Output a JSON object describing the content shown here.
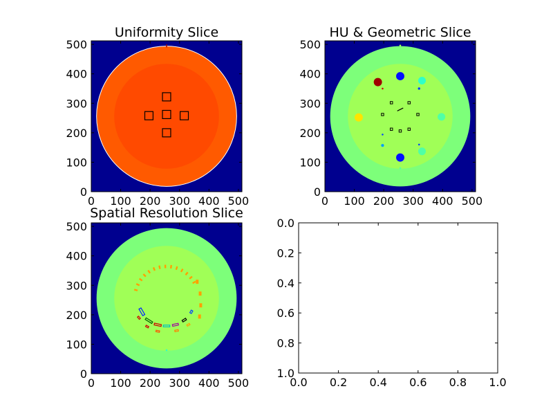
{
  "chart_data": [
    {
      "type": "heatmap",
      "title": "Uniformity Slice",
      "xlabel": "",
      "ylabel": "",
      "xlim": [
        0,
        512
      ],
      "ylim": [
        512,
        0
      ],
      "xticks": [
        0,
        100,
        200,
        300,
        400,
        500
      ],
      "yticks": [
        0,
        100,
        200,
        300,
        400,
        500
      ],
      "background_color": "#00008f",
      "phantom": {
        "center": [
          256,
          256
        ],
        "radius": 238,
        "outer_color": "#ff5a00",
        "inner_radius": 178,
        "inner_color": "#ff4a00",
        "rim_color": "#ffffff"
      },
      "rois": [
        {
          "cx": 256,
          "cy": 190,
          "size": 28
        },
        {
          "cx": 196,
          "cy": 254,
          "size": 28
        },
        {
          "cx": 256,
          "cy": 250,
          "size": 28
        },
        {
          "cx": 316,
          "cy": 254,
          "size": 28
        },
        {
          "cx": 256,
          "cy": 312,
          "size": 28
        }
      ]
    },
    {
      "type": "heatmap",
      "title": "HU & Geometric Slice",
      "xlabel": "",
      "ylabel": "",
      "xlim": [
        0,
        512
      ],
      "ylim": [
        512,
        0
      ],
      "xticks": [
        0,
        100,
        200,
        300,
        400,
        500
      ],
      "yticks": [
        0,
        100,
        200,
        300,
        400,
        500
      ],
      "background_color": "#00008f",
      "phantom": {
        "center": [
          256,
          256
        ],
        "radius": 238,
        "outer_color": "#7dff7a",
        "inner_radius": 178,
        "inner_color": "#a0ff57"
      },
      "inserts": [
        {
          "cx": 256,
          "cy": 120,
          "r": 14,
          "color": "#0010ff"
        },
        {
          "cx": 180,
          "cy": 140,
          "r": 14,
          "color": "#9f0000"
        },
        {
          "cx": 330,
          "cy": 135,
          "r": 13,
          "color": "#30ffc8"
        },
        {
          "cx": 115,
          "cy": 260,
          "r": 14,
          "color": "#ffe400"
        },
        {
          "cx": 396,
          "cy": 258,
          "r": 13,
          "color": "#50ffa6"
        },
        {
          "cx": 330,
          "cy": 375,
          "r": 13,
          "color": "#50ffa6"
        },
        {
          "cx": 256,
          "cy": 396,
          "r": 14,
          "color": "#0010ff"
        },
        {
          "cx": 196,
          "cy": 355,
          "r": 5,
          "color": "#00a0ff"
        },
        {
          "cx": 320,
          "cy": 162,
          "r": 4,
          "color": "#0040ff"
        },
        {
          "cx": 196,
          "cy": 162,
          "r": 3,
          "color": "#d00000"
        },
        {
          "cx": 320,
          "cy": 352,
          "r": 3,
          "color": "#0040ff"
        },
        {
          "cx": 196,
          "cy": 318,
          "r": 3,
          "color": "#0040ff"
        },
        {
          "cx": 256,
          "cy": 16,
          "r": 3,
          "color": "#a0ff57"
        },
        {
          "cx": 256,
          "cy": 432,
          "r": 3,
          "color": "#50ffa6"
        }
      ],
      "squares": [
        {
          "cx": 226,
          "cy": 210,
          "size": 8
        },
        {
          "cx": 286,
          "cy": 210,
          "size": 8
        },
        {
          "cx": 196,
          "cy": 250,
          "size": 8
        },
        {
          "cx": 316,
          "cy": 250,
          "size": 8
        },
        {
          "cx": 226,
          "cy": 300,
          "size": 8
        },
        {
          "cx": 256,
          "cy": 306,
          "size": 8
        },
        {
          "cx": 286,
          "cy": 300,
          "size": 8
        }
      ]
    },
    {
      "type": "heatmap",
      "title": "Spatial Resolution Slice",
      "xlabel": "",
      "ylabel": "",
      "xlim": [
        0,
        512
      ],
      "ylim": [
        512,
        0
      ],
      "xticks": [
        0,
        100,
        200,
        300,
        400,
        500
      ],
      "yticks": [
        0,
        100,
        200,
        300,
        400,
        500
      ],
      "background_color": "#00008f",
      "phantom": {
        "center": [
          256,
          256
        ],
        "radius": 238,
        "outer_color": "#7dff7a",
        "inner_radius": 178,
        "inner_color": "#a0ff57"
      },
      "ring": {
        "center": [
          256,
          256
        ],
        "radius": 108,
        "start_deg": 195,
        "end_deg": 330,
        "count": 14,
        "color": "#ffa000"
      },
      "bar_groups": [
        {
          "cx": 172,
          "cy": 302,
          "w": 8,
          "h": 26,
          "angle": -30,
          "color": "#0020ff"
        },
        {
          "cx": 196,
          "cy": 332,
          "w": 6,
          "h": 26,
          "angle": -58,
          "color": "#006000"
        },
        {
          "cx": 226,
          "cy": 346,
          "w": 6,
          "h": 24,
          "angle": -78,
          "color": "#d00000"
        },
        {
          "cx": 256,
          "cy": 350,
          "w": 6,
          "h": 22,
          "angle": 90,
          "color": "#00c0c0"
        },
        {
          "cx": 286,
          "cy": 346,
          "w": 6,
          "h": 20,
          "angle": 78,
          "color": "#a000a0"
        },
        {
          "cx": 316,
          "cy": 330,
          "w": 6,
          "h": 14,
          "angle": 58,
          "color": "#000000"
        },
        {
          "cx": 340,
          "cy": 302,
          "w": 6,
          "h": 10,
          "angle": 30,
          "color": "#0040ff"
        },
        {
          "cx": 162,
          "cy": 322,
          "w": 5,
          "h": 10,
          "angle": -40,
          "color": "#d00000"
        },
        {
          "cx": 190,
          "cy": 352,
          "w": 5,
          "h": 10,
          "angle": -60,
          "color": "#d00000"
        },
        {
          "cx": 226,
          "cy": 368,
          "w": 5,
          "h": 12,
          "angle": -80,
          "color": "#ff5000"
        },
        {
          "cx": 290,
          "cy": 366,
          "w": 5,
          "h": 12,
          "angle": 80,
          "color": "#ff8000"
        },
        {
          "cx": 330,
          "cy": 346,
          "w": 5,
          "h": 10,
          "angle": 60,
          "color": "#ffa000"
        }
      ],
      "markers": [
        {
          "cx": 256,
          "cy": 432,
          "r": 3,
          "color": "#30ffc8"
        }
      ]
    },
    {
      "type": "scatter",
      "title": "",
      "xlabel": "",
      "ylabel": "",
      "xlim": [
        0.0,
        1.0
      ],
      "ylim": [
        0.0,
        1.0
      ],
      "xticks": [
        "0.0",
        "0.2",
        "0.4",
        "0.6",
        "0.8",
        "1.0"
      ],
      "yticks": [
        "0.0",
        "0.2",
        "0.4",
        "0.6",
        "0.8",
        "1.0"
      ],
      "series": []
    }
  ]
}
